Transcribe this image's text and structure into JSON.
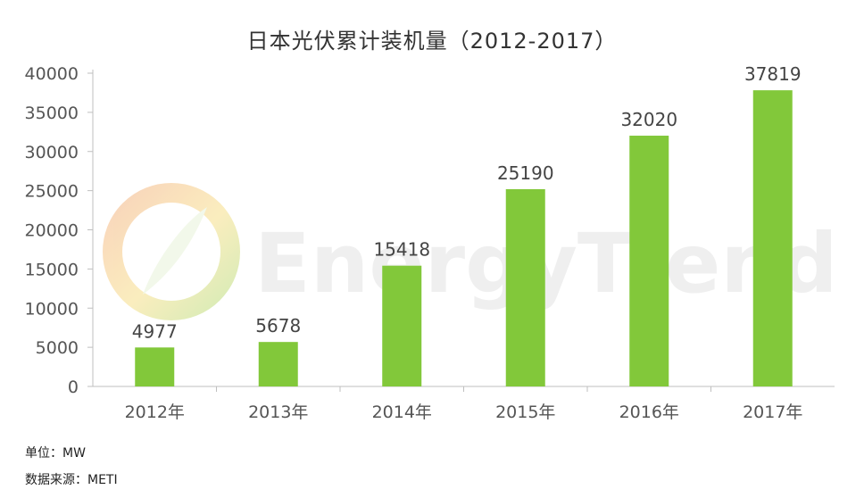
{
  "chart_data": {
    "type": "bar",
    "title": "日本光伏累计装机量（2012-2017）",
    "categories": [
      "2012年",
      "2013年",
      "2014年",
      "2015年",
      "2016年",
      "2017年"
    ],
    "values": [
      4977,
      5678,
      15418,
      25190,
      32020,
      37819
    ],
    "data_labels": [
      "4977",
      "5678",
      "15418",
      "25190",
      "32020",
      "37819"
    ],
    "ylim": [
      0,
      40000
    ],
    "yticks": [
      0,
      5000,
      10000,
      15000,
      20000,
      25000,
      30000,
      35000,
      40000
    ],
    "ytick_labels": [
      "0",
      "5000",
      "10000",
      "15000",
      "20000",
      "25000",
      "30000",
      "35000",
      "40000"
    ],
    "bar_color": "#82c83a",
    "grid": false,
    "legend": "none"
  },
  "watermark": {
    "text": "EnergyTrend"
  },
  "notes": {
    "unit": "单位：MW",
    "source": "数据来源：METI"
  }
}
